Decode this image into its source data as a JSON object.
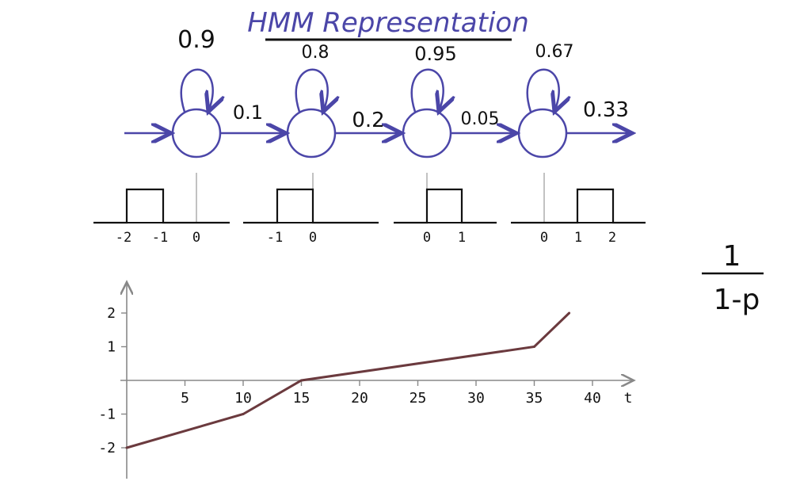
{
  "title": "HMM Representation",
  "colors": {
    "hmm": "#4b46a8",
    "ink": "#111111",
    "axis": "#888888",
    "line": "#6b3a3e"
  },
  "hmm": {
    "states": [
      {
        "self_prob": "0.9",
        "pulse_labels": [
          "-2",
          "-1",
          "0"
        ]
      },
      {
        "self_prob": "0.8",
        "pulse_labels": [
          "-1",
          "0"
        ]
      },
      {
        "self_prob": "0.95",
        "pulse_labels": [
          "0",
          "1"
        ]
      },
      {
        "self_prob": "0.67",
        "pulse_labels": [
          "0",
          "1",
          "2"
        ]
      }
    ],
    "transitions": [
      "0.1",
      "0.2",
      "0.05",
      "0.33"
    ]
  },
  "chart_data": {
    "type": "line",
    "x": [
      0,
      10,
      15,
      35,
      38
    ],
    "y": [
      -2,
      -1,
      0,
      1,
      2
    ],
    "xticks": [
      "5",
      "10",
      "15",
      "20",
      "25",
      "30",
      "35",
      "40"
    ],
    "yticks": [
      "2",
      "1",
      "-1",
      "-2"
    ],
    "xlabel": "t",
    "ylabel": "",
    "xlim": [
      0,
      43
    ],
    "ylim": [
      -2.8,
      2.8
    ]
  },
  "side_formula": {
    "numerator": "1",
    "denominator": "1-p"
  }
}
